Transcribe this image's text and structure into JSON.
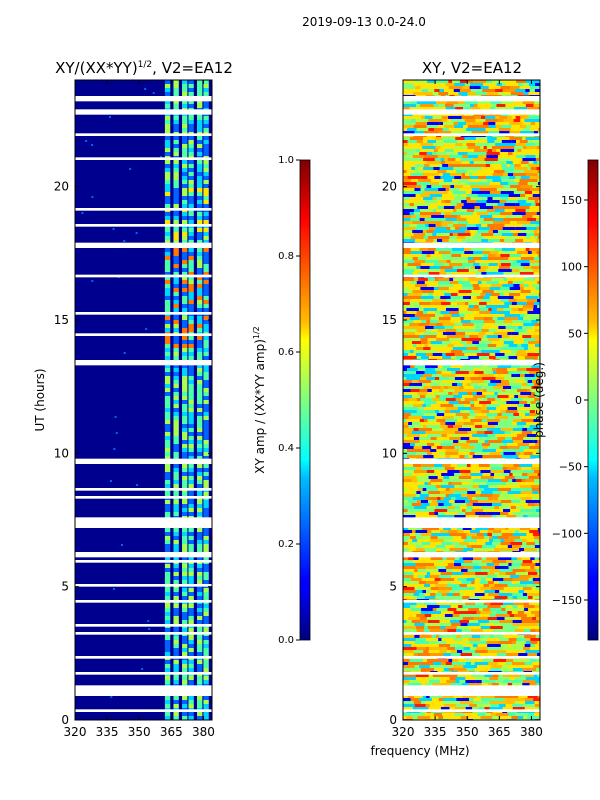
{
  "figure": {
    "suptitle": "2019-09-13 0.0-24.0",
    "xlabel": "frequency (MHz)"
  },
  "chart_data": [
    {
      "type": "heatmap",
      "title_main": "XY/(XX*YY)",
      "title_sup": "1/2",
      "title_rest": ", V2=EA12",
      "ylabel": "UT (hours)",
      "xlabel": "",
      "xlim": [
        320,
        384
      ],
      "ylim": [
        0,
        24
      ],
      "xticks": [
        320,
        335,
        350,
        365,
        380
      ],
      "yticks": [
        0,
        5,
        10,
        15,
        20
      ],
      "flag_bands_hours": [
        [
          0.3,
          0.4
        ],
        [
          0.9,
          1.3
        ],
        [
          1.7,
          1.8
        ],
        [
          2.3,
          2.4
        ],
        [
          3.2,
          3.3
        ],
        [
          3.5,
          3.6
        ],
        [
          4.4,
          4.5
        ],
        [
          5.0,
          5.1
        ],
        [
          5.9,
          6.0
        ],
        [
          6.1,
          6.3
        ],
        [
          7.2,
          7.6
        ],
        [
          8.3,
          8.4
        ],
        [
          8.6,
          8.7
        ],
        [
          9.6,
          9.8
        ],
        [
          13.3,
          13.5
        ],
        [
          14.4,
          14.5
        ],
        [
          15.2,
          15.3
        ],
        [
          16.6,
          16.7
        ],
        [
          17.7,
          17.9
        ],
        [
          18.5,
          18.6
        ],
        [
          19.1,
          19.2
        ],
        [
          21.0,
          21.1
        ],
        [
          21.9,
          22.0
        ],
        [
          22.7,
          22.9
        ],
        [
          23.2,
          23.4
        ]
      ],
      "colorbar": {
        "label_main": "XY amp / (XX*YY amp)",
        "label_sup": "1/2",
        "range": [
          0.0,
          1.0
        ],
        "ticks": [
          "0.0",
          "0.2",
          "0.4",
          "0.6",
          "0.8",
          "1.0"
        ],
        "colormap": "jet"
      }
    },
    {
      "type": "heatmap",
      "title_main": "XY, V2=EA12",
      "ylabel": "",
      "xlabel": "frequency (MHz)",
      "xlim": [
        320,
        384
      ],
      "ylim": [
        0,
        24
      ],
      "xticks": [
        320,
        335,
        350,
        365,
        380
      ],
      "yticks": [
        0,
        5,
        10,
        15,
        20
      ],
      "flag_bands_hours": [
        [
          0.3,
          0.4
        ],
        [
          0.9,
          1.3
        ],
        [
          1.7,
          1.8
        ],
        [
          2.3,
          2.4
        ],
        [
          3.2,
          3.3
        ],
        [
          4.4,
          4.5
        ],
        [
          6.1,
          6.3
        ],
        [
          7.2,
          7.6
        ],
        [
          9.6,
          9.8
        ],
        [
          13.3,
          13.5
        ],
        [
          16.6,
          16.7
        ],
        [
          17.7,
          17.9
        ],
        [
          21.9,
          22.0
        ],
        [
          22.7,
          22.9
        ],
        [
          23.2,
          23.4
        ]
      ],
      "colorbar": {
        "label_main": "phase (deg.)",
        "range": [
          -180,
          180
        ],
        "ticks": [
          "150",
          "100",
          "50",
          "0",
          "−50",
          "−100",
          "−150"
        ],
        "tick_values": [
          150,
          100,
          50,
          0,
          -50,
          -100,
          -150
        ],
        "colormap": "jet"
      }
    }
  ]
}
